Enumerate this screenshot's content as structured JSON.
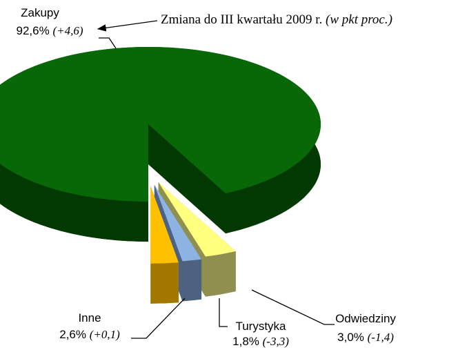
{
  "chart_data": {
    "type": "pie3d",
    "annotation": "Zmiana do III kwartału 2009 r.",
    "annotation_note": "(w pkt proc.)",
    "categories": [
      "Zakupy",
      "Odwiedziny",
      "Turystyka",
      "Inne"
    ],
    "values": [
      92.6,
      3.0,
      1.8,
      2.6
    ],
    "value_labels": [
      "92,6%",
      "3,0%",
      "1,8%",
      "2,6%"
    ],
    "change_labels": [
      "(+4,6)",
      "(-1,4)",
      "(-3,3)",
      "(+0,1)"
    ],
    "colors": [
      "#086808",
      "#ffff80",
      "#8db3e2",
      "#ffc000"
    ],
    "side_colors": [
      "#023802",
      "#8f8f50",
      "#4d6280",
      "#a37800"
    ]
  }
}
